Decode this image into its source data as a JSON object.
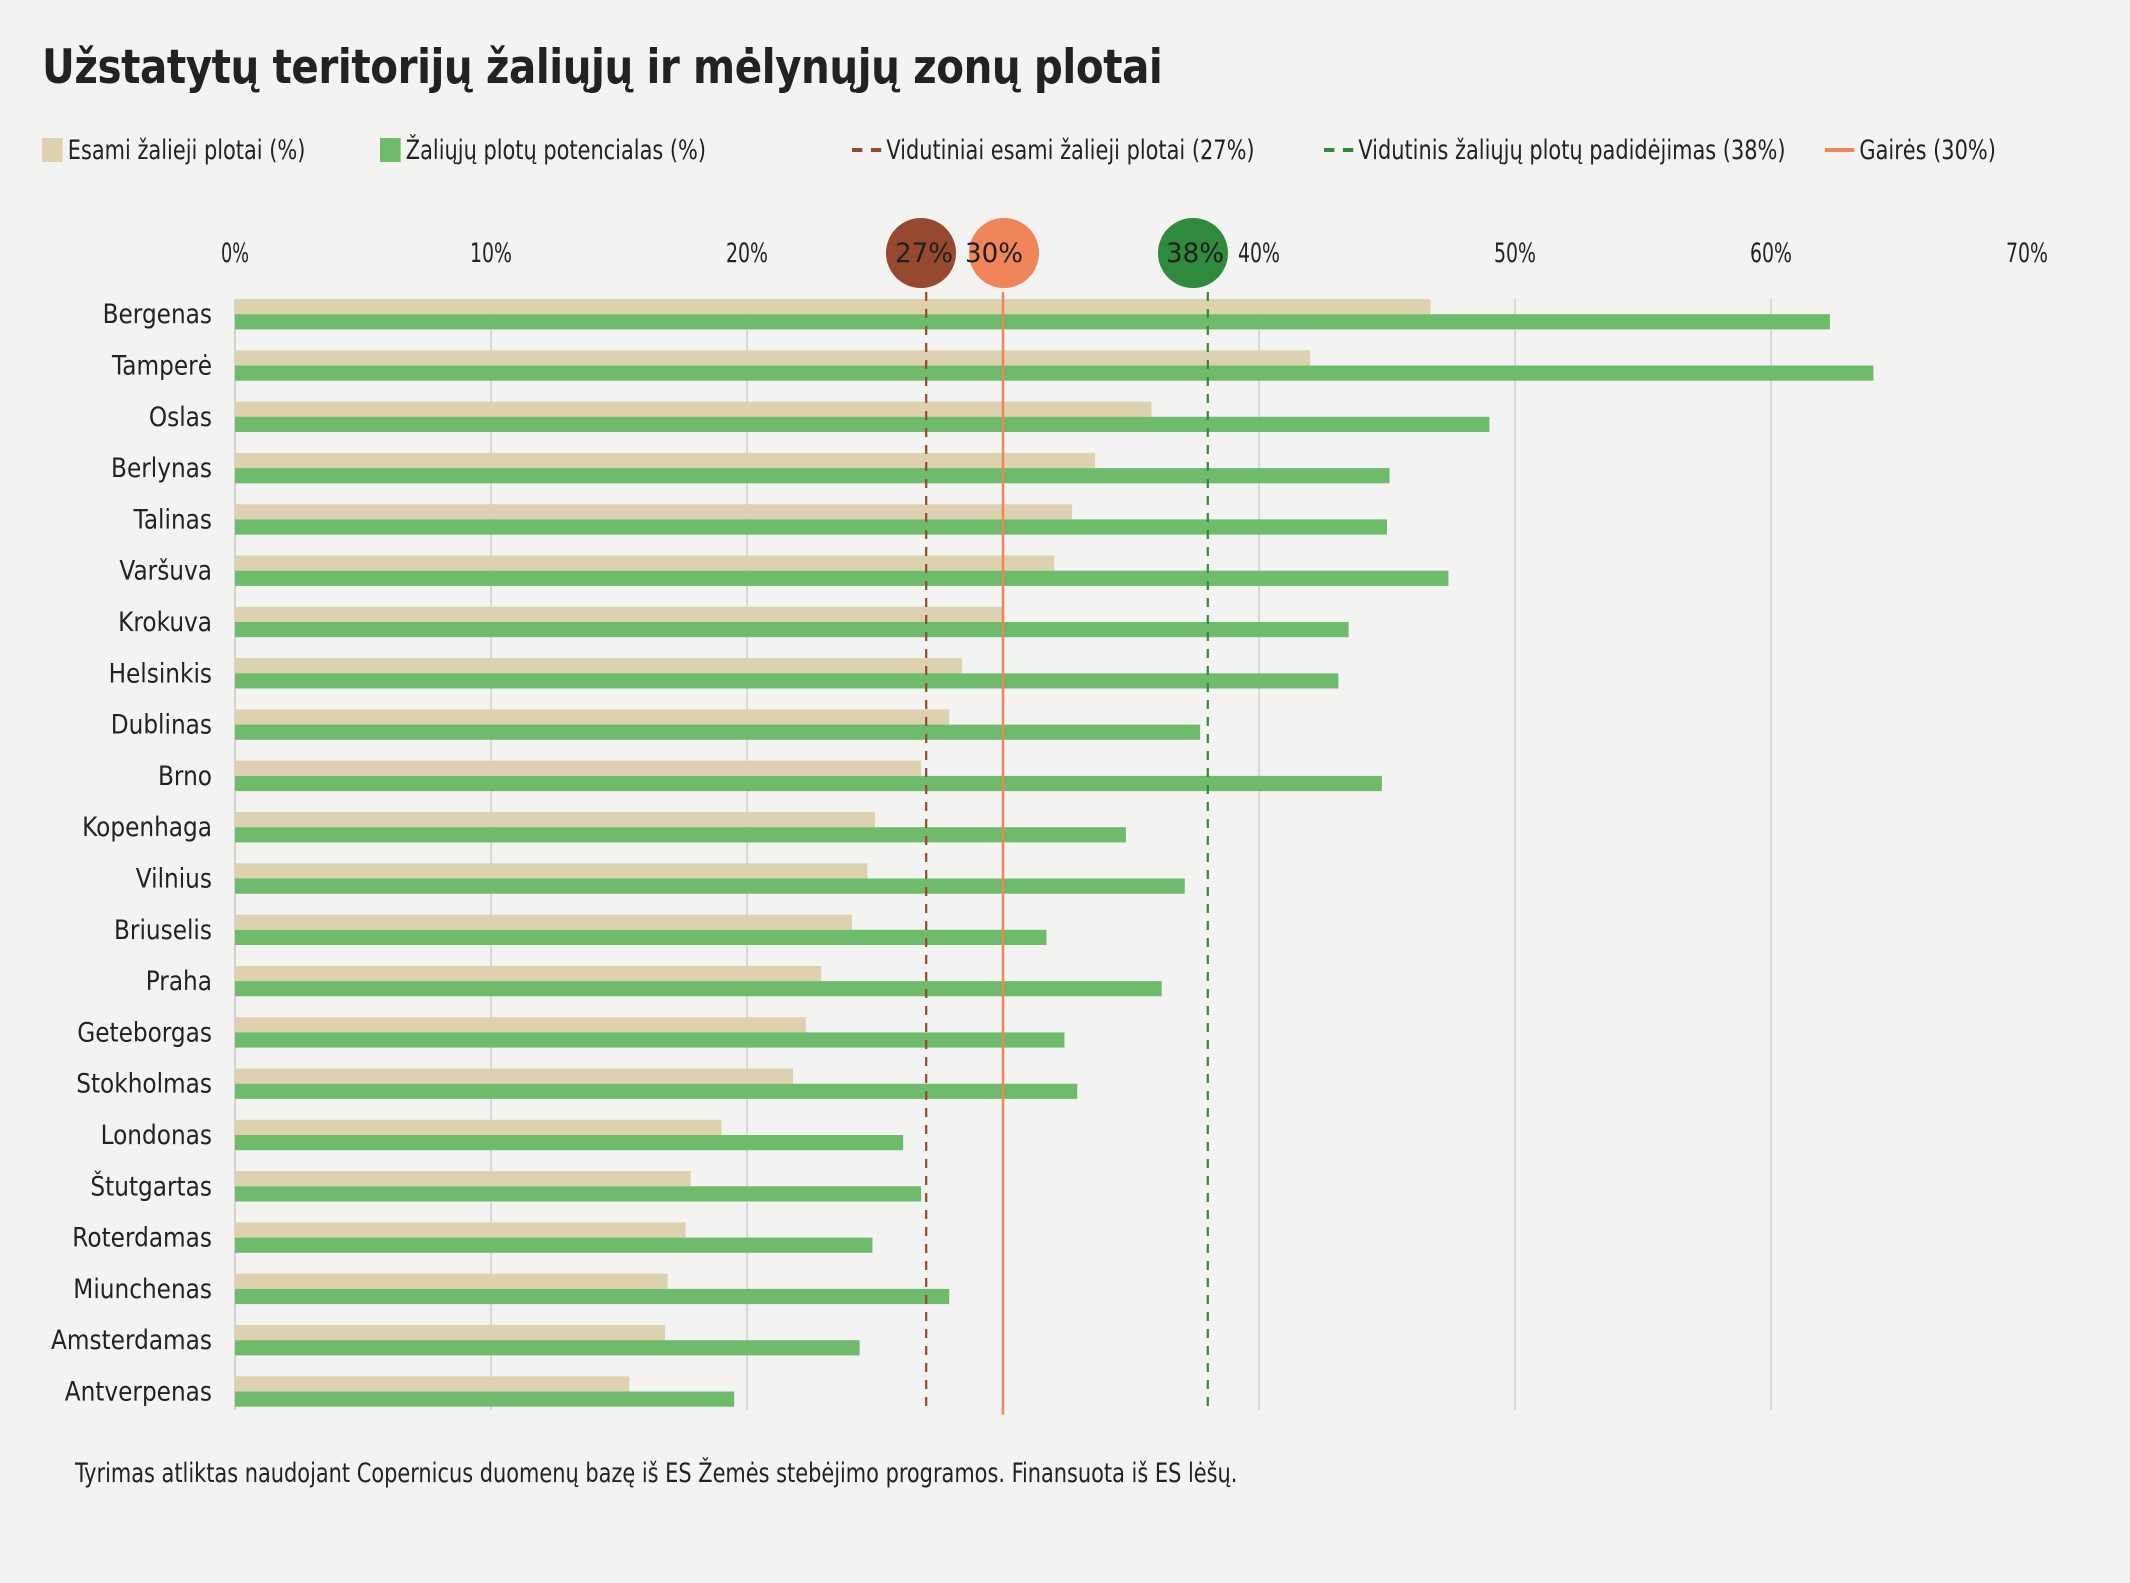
{
  "title": "Užstatytų teritorijų žaliųjų ir mėlynųjų zonų plotai",
  "legend": [
    {
      "label": "Esami žalieji plotai (%)",
      "type": "swatch",
      "color": "#ddd1b0"
    },
    {
      "label": "Žaliųjų plotų potencialas (%)",
      "type": "swatch",
      "color": "#6dbb6b"
    },
    {
      "label": "Vidutiniai esami žalieji plotai (27%)",
      "type": "dashed",
      "color": "#96492f"
    },
    {
      "label": "Vidutinis žaliųjų plotų padidėjimas (38%)",
      "type": "dashed",
      "color": "#2f8a3d"
    },
    {
      "label": "Gairės (30%)",
      "type": "solid",
      "color": "#ef8559"
    }
  ],
  "footer": "Tyrimas atliktas naudojant Copernicus duomenų bazę iš ES Žemės stebėjimo programos. Finansuota iš ES lėšų.",
  "colors": {
    "background": "#f3f3f1",
    "existing": "#ddd1b0",
    "potential": "#6dbb6b",
    "avg_existing": "#96492f",
    "avg_potential": "#2f8a3d",
    "guideline": "#ef8559",
    "grid": "#cfcfcf",
    "text": "#222222"
  },
  "chart_data": {
    "type": "bar",
    "orientation": "horizontal",
    "title": "Užstatytų teritorijų žaliųjų ir mėlynųjų zonų plotai",
    "xlabel": "",
    "ylabel": "",
    "xlim": [
      0,
      70
    ],
    "x_ticks": [
      0,
      10,
      20,
      30,
      40,
      50,
      60,
      70
    ],
    "x_tick_labels": [
      "0%",
      "10%",
      "20%",
      "30%",
      "40%",
      "50%",
      "60%",
      "70%"
    ],
    "grid": true,
    "legend_position": "top",
    "categories": [
      "Bergenas",
      "Tamperė",
      "Oslas",
      "Berlynas",
      "Talinas",
      "Varšuva",
      "Krokuva",
      "Helsinkis",
      "Dublinas",
      "Brno",
      "Kopenhaga",
      "Vilnius",
      "Briuselis",
      "Praha",
      "Geteborgas",
      "Stokholmas",
      "Londonas",
      "Štutgartas",
      "Roterdamas",
      "Miunchenas",
      "Amsterdamas",
      "Antverpenas"
    ],
    "series": [
      {
        "name": "Esami žalieji plotai (%)",
        "values": [
          46.7,
          42.0,
          35.8,
          33.6,
          32.7,
          32.0,
          30.0,
          28.4,
          27.9,
          26.8,
          25.0,
          24.7,
          24.1,
          22.9,
          22.3,
          21.8,
          19.0,
          17.8,
          17.6,
          16.9,
          16.8,
          15.4
        ]
      },
      {
        "name": "Žaliųjų plotų potencialas (%)",
        "values": [
          62.3,
          64.0,
          49.0,
          45.1,
          45.0,
          47.4,
          43.5,
          43.1,
          37.7,
          44.8,
          34.8,
          37.1,
          31.7,
          36.2,
          32.4,
          32.9,
          26.1,
          26.8,
          24.9,
          27.9,
          24.4,
          19.5
        ]
      }
    ],
    "reference_lines": [
      {
        "name": "Vidutiniai esami žalieji plotai",
        "value": 27,
        "label": "27%",
        "style": "dashed"
      },
      {
        "name": "Gairės",
        "value": 30,
        "label": "30%",
        "style": "solid"
      },
      {
        "name": "Vidutinis žaliųjų plotų padidėjimas",
        "value": 38,
        "label": "38%",
        "style": "dashed"
      }
    ]
  }
}
